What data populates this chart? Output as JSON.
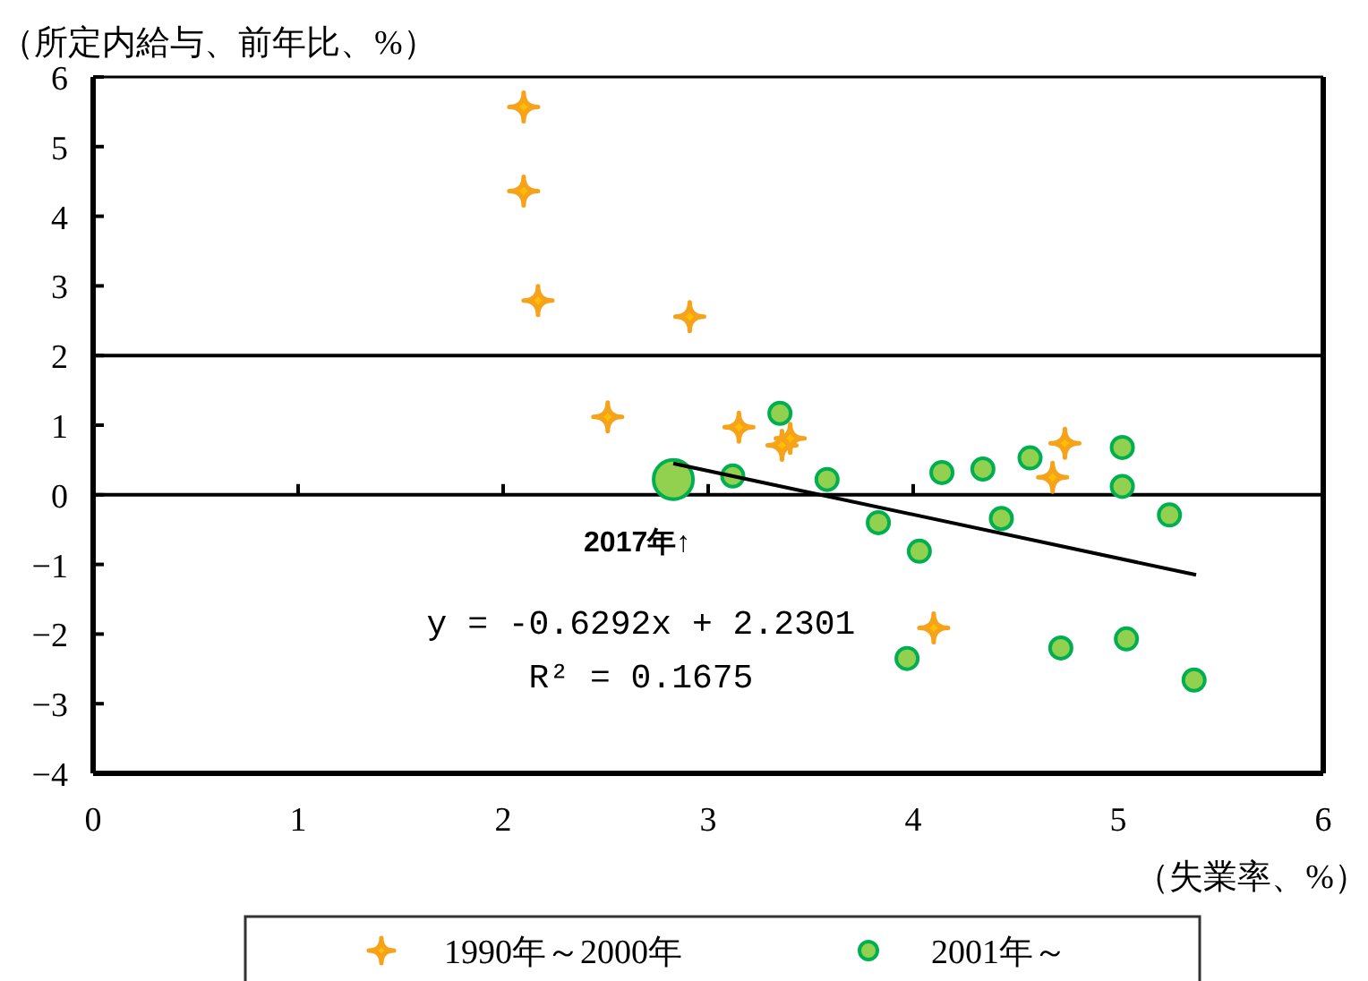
{
  "chart_data": {
    "type": "scatter",
    "ylabel": "（所定内給与、前年比、%）",
    "xlabel": "（失業率、%）",
    "xlim": [
      0,
      6
    ],
    "ylim": [
      -4,
      6
    ],
    "xticks": [
      0,
      1,
      2,
      3,
      4,
      5,
      6
    ],
    "yticks": [
      {
        "value": -4,
        "label": "−4"
      },
      {
        "value": -3,
        "label": "−3"
      },
      {
        "value": -2,
        "label": "−2"
      },
      {
        "value": -1,
        "label": "−1"
      },
      0,
      1,
      2,
      3,
      4,
      5,
      6
    ],
    "legend": "bottom",
    "ref_lines": [
      {
        "axis": "y",
        "value": 0,
        "color": "#000000"
      },
      {
        "axis": "y",
        "value": 2,
        "color": "#000000"
      }
    ],
    "series": [
      {
        "name": "1990年～2000年",
        "marker": "diamond",
        "color": "#f7a21b",
        "x": [
          2.1,
          2.1,
          2.17,
          2.91,
          2.51,
          3.15,
          3.36,
          3.4,
          4.74,
          4.68,
          4.1
        ],
        "values": [
          5.57,
          4.36,
          2.79,
          2.56,
          1.12,
          0.97,
          0.71,
          0.81,
          0.74,
          0.25,
          -1.91
        ]
      },
      {
        "name": "2001年～",
        "marker": "circle",
        "color": "#92d050",
        "x": [
          3.35,
          3.12,
          3.58,
          3.83,
          4.03,
          4.14,
          4.34,
          4.57,
          5.02,
          5.02,
          4.43,
          5.25,
          3.97,
          4.72,
          5.04,
          5.37
        ],
        "values": [
          1.17,
          0.27,
          0.22,
          -0.4,
          -0.81,
          0.32,
          0.37,
          0.53,
          0.68,
          0.12,
          -0.34,
          -0.29,
          -2.35,
          -2.2,
          -2.07,
          -2.66
        ]
      },
      {
        "type": "bubble",
        "marker": "circle",
        "color": "#92d050",
        "x": [
          2.83
        ],
        "values": [
          0.22
        ],
        "sizes": [
          1
        ]
      },
      {
        "type": "line",
        "marker": "none",
        "line_style": "solid",
        "color": "#000000",
        "x": [
          2.83,
          5.38
        ],
        "values": [
          0.45,
          -1.15
        ]
      }
    ],
    "annotations": [
      {
        "text": "2017年↑",
        "x": 2.83,
        "y": 0.22
      },
      "y = -0.6292x + 2.2301",
      "R² = 0.1675"
    ]
  }
}
